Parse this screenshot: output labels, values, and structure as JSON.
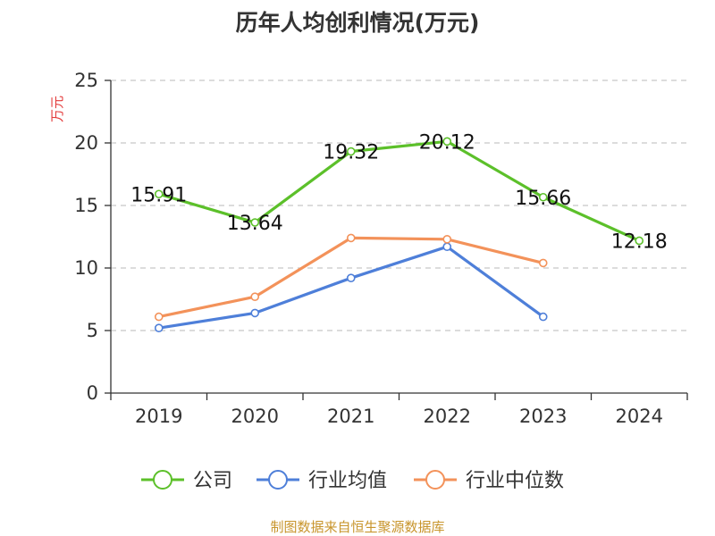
{
  "chart_data": {
    "type": "line",
    "title": "历年人均创利情况(万元)",
    "ylabel": "万元",
    "ylim": [
      0,
      25
    ],
    "yticks": [
      0,
      5,
      10,
      15,
      20,
      25
    ],
    "categories": [
      "2019",
      "2020",
      "2021",
      "2022",
      "2023",
      "2024"
    ],
    "grid": true,
    "legend_position": "bottom",
    "series": [
      {
        "name": "公司",
        "color": "#5cc02a",
        "values": [
          15.91,
          13.64,
          19.32,
          20.12,
          15.66,
          12.18
        ],
        "labels": [
          "15.91",
          "13.64",
          "19.32",
          "20.12",
          "15.66",
          "12.18"
        ]
      },
      {
        "name": "行业均值",
        "color": "#4e7fd9",
        "values": [
          5.2,
          6.4,
          9.2,
          11.7,
          6.1,
          null
        ]
      },
      {
        "name": "行业中位数",
        "color": "#f3925a",
        "values": [
          6.1,
          7.7,
          12.4,
          12.3,
          10.4,
          null
        ]
      }
    ]
  },
  "source_text": "制图数据来自恒生聚源数据库"
}
